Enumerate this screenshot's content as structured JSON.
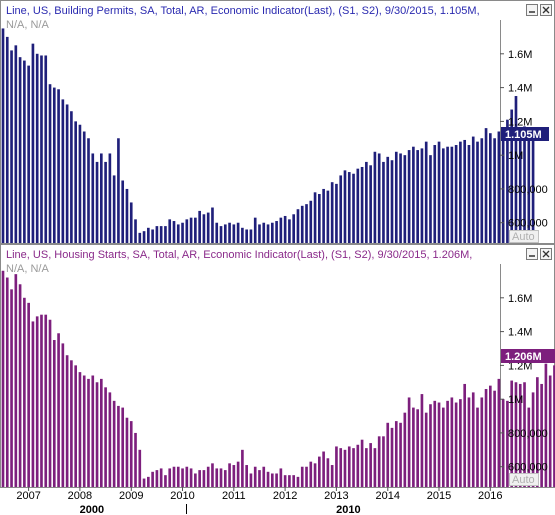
{
  "chart_data": [
    {
      "type": "bar",
      "title": "Line, US, Building Permits, SA, Total, AR, Economic Indicator(Last), (S1, S2), 9/30/2015, 1.105M,",
      "subtitle": "N/A, N/A",
      "last_value_label": "1.105M",
      "auto_label": "Auto",
      "color": "#1f1f7a",
      "ylim": [
        480000,
        1800000
      ],
      "yticks": [
        {
          "value": 600000,
          "label": "600,000"
        },
        {
          "value": 800000,
          "label": "800,000"
        },
        {
          "value": 1000000,
          "label": "1M"
        },
        {
          "value": 1200000,
          "label": "1.2M"
        },
        {
          "value": 1400000,
          "label": "1.4M"
        },
        {
          "value": 1600000,
          "label": "1.6M"
        }
      ],
      "start": 2006.5,
      "step": 0.08333,
      "values": [
        1750000,
        1700000,
        1620000,
        1650000,
        1580000,
        1560000,
        1530000,
        1660000,
        1600000,
        1590000,
        1590000,
        1420000,
        1400000,
        1390000,
        1330000,
        1300000,
        1260000,
        1200000,
        1180000,
        1140000,
        1100000,
        1010000,
        960000,
        1010000,
        960000,
        1010000,
        880000,
        1100000,
        850000,
        800000,
        720000,
        620000,
        540000,
        550000,
        570000,
        560000,
        580000,
        580000,
        580000,
        620000,
        610000,
        590000,
        600000,
        620000,
        630000,
        630000,
        670000,
        650000,
        660000,
        690000,
        600000,
        580000,
        590000,
        600000,
        590000,
        600000,
        570000,
        560000,
        560000,
        630000,
        590000,
        600000,
        590000,
        600000,
        610000,
        630000,
        640000,
        620000,
        650000,
        680000,
        700000,
        710000,
        730000,
        780000,
        770000,
        800000,
        790000,
        840000,
        830000,
        880000,
        910000,
        900000,
        890000,
        920000,
        930000,
        960000,
        940000,
        1020000,
        1010000,
        960000,
        990000,
        970000,
        1020000,
        1010000,
        1000000,
        1030000,
        1050000,
        1030000,
        1040000,
        1080000,
        1000000,
        1060000,
        1080000,
        1040000,
        1050000,
        1050000,
        1060000,
        1080000,
        1090000,
        1060000,
        1110000,
        1080000,
        1100000,
        1160000,
        1130000,
        1100000,
        1140000,
        1110000,
        1210000,
        1270000,
        1350000,
        1140000,
        1170000,
        1140000,
        1105000
      ]
    },
    {
      "type": "bar",
      "title": "Line, US, Housing Starts, SA, Total, AR, Economic Indicator(Last), (S1, S2), 9/30/2015, 1.206M,",
      "subtitle": "N/A, N/A",
      "last_value_label": "1.206M",
      "auto_label": "Auto",
      "color": "#7d1f7d",
      "ylim": [
        480000,
        1800000
      ],
      "yticks": [
        {
          "value": 600000,
          "label": "600,000"
        },
        {
          "value": 800000,
          "label": "800,000"
        },
        {
          "value": 1000000,
          "label": "1M"
        },
        {
          "value": 1200000,
          "label": "1.2M"
        },
        {
          "value": 1400000,
          "label": "1.4M"
        },
        {
          "value": 1600000,
          "label": "1.6M"
        }
      ],
      "start": 2006.5,
      "step": 0.08333,
      "values": [
        1760000,
        1720000,
        1650000,
        1740000,
        1680000,
        1600000,
        1570000,
        1460000,
        1490000,
        1500000,
        1500000,
        1470000,
        1350000,
        1390000,
        1330000,
        1260000,
        1230000,
        1200000,
        1160000,
        1140000,
        1120000,
        1140000,
        1100000,
        1120000,
        1070000,
        1040000,
        990000,
        960000,
        950000,
        890000,
        870000,
        800000,
        700000,
        530000,
        540000,
        570000,
        580000,
        590000,
        550000,
        590000,
        600000,
        600000,
        590000,
        600000,
        590000,
        560000,
        580000,
        580000,
        600000,
        620000,
        590000,
        590000,
        580000,
        620000,
        610000,
        630000,
        700000,
        610000,
        560000,
        600000,
        580000,
        600000,
        570000,
        560000,
        560000,
        590000,
        550000,
        550000,
        550000,
        540000,
        600000,
        600000,
        630000,
        620000,
        660000,
        690000,
        650000,
        610000,
        720000,
        710000,
        700000,
        720000,
        710000,
        730000,
        760000,
        710000,
        740000,
        710000,
        780000,
        780000,
        860000,
        830000,
        870000,
        860000,
        920000,
        1010000,
        950000,
        940000,
        1030000,
        920000,
        970000,
        990000,
        980000,
        950000,
        990000,
        1010000,
        980000,
        1000000,
        1090000,
        1010000,
        1040000,
        950000,
        1010000,
        1060000,
        1080000,
        1050000,
        1120000,
        1000000,
        990000,
        1110000,
        1100000,
        1090000,
        1100000,
        950000,
        1040000,
        1130000,
        1090000,
        1210000,
        1140000,
        1200000,
        1180000,
        1160000,
        1206000
      ]
    }
  ],
  "xaxis": {
    "years": [
      "2007",
      "2008",
      "2009",
      "2010",
      "2011",
      "2012",
      "2013",
      "2014",
      "2015",
      "2016"
    ],
    "decades": [
      "2000",
      "2010"
    ]
  }
}
